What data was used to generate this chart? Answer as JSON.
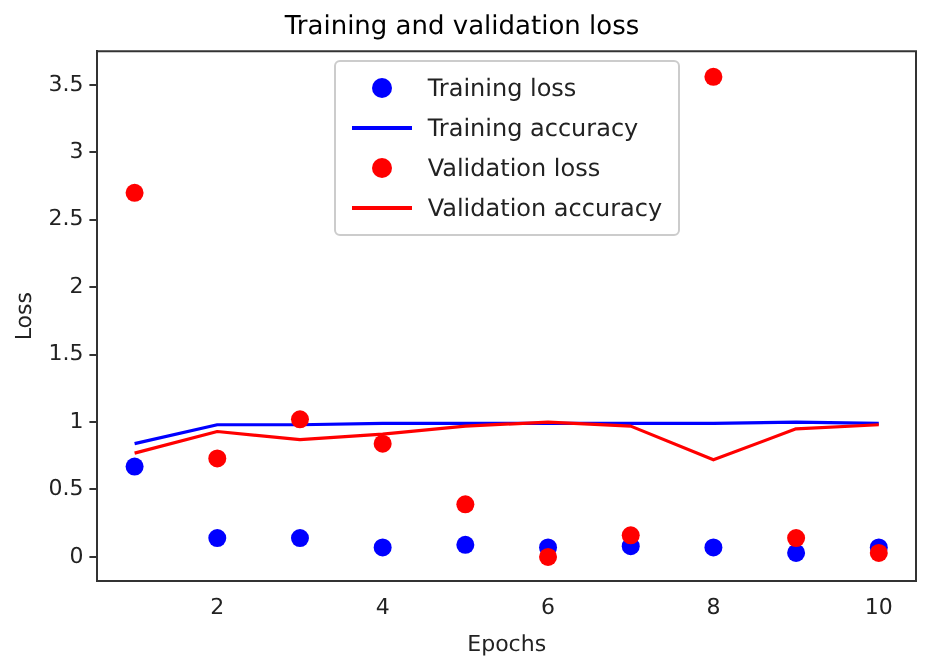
{
  "chart_data": {
    "type": "scatter",
    "title": "Training and validation loss",
    "xlabel": "Epochs",
    "ylabel": "Loss",
    "x": [
      1,
      2,
      3,
      4,
      5,
      6,
      7,
      8,
      9,
      10
    ],
    "series": [
      {
        "name": "Training loss",
        "color": "#0000ff",
        "values": [
          0.67,
          0.14,
          0.14,
          0.07,
          0.09,
          0.07,
          0.08,
          0.07,
          0.03,
          0.07
        ]
      },
      {
        "name": "Training accuracy",
        "type": "line",
        "color": "#0000ff",
        "values": [
          0.84,
          0.98,
          0.98,
          0.99,
          0.99,
          0.99,
          0.99,
          0.99,
          1.0,
          0.99
        ]
      },
      {
        "name": "Validation loss",
        "color": "#ff0000",
        "values": [
          2.7,
          0.73,
          1.02,
          0.84,
          0.39,
          0.0,
          0.16,
          3.56,
          0.14,
          0.03
        ]
      },
      {
        "name": "Validation accuracy",
        "type": "line",
        "color": "#ff0000",
        "values": [
          0.77,
          0.93,
          0.87,
          0.91,
          0.97,
          1.0,
          0.97,
          0.72,
          0.95,
          0.98
        ]
      }
    ],
    "xlim": [
      0.55,
      10.45
    ],
    "xticks": [
      2,
      4,
      6,
      8,
      10
    ],
    "ylim": [
      -0.18,
      3.75
    ],
    "yticks": [
      0,
      0.5,
      1,
      1.5,
      2,
      2.5,
      3,
      3.5
    ],
    "legend": "top",
    "grid": false
  }
}
